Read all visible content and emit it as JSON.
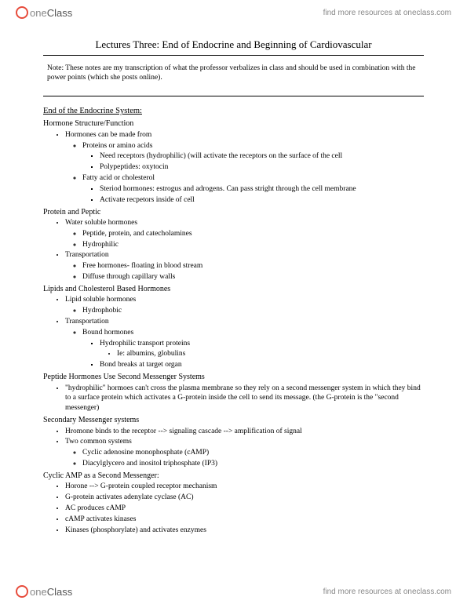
{
  "header": {
    "logo_one": "one",
    "logo_class": "Class",
    "link": "find more resources at oneclass.com"
  },
  "title": "Lectures Three: End of Endocrine and Beginning of Cardiovascular",
  "note": "Note: These notes are my transcription of what the professor verbalizes in class and should be used in combination with the power points (which she posts online).",
  "section_heading": "End of the Endocrine System:",
  "topics": {
    "t1": "Hormone Structure/Function",
    "t1_b1": "Hormones can be made from",
    "t1_b1_s1": "Proteins or amino acids",
    "t1_b1_s1_a": "Need receptors (hydrophilic) (will activate the receptors on the surface of the cell",
    "t1_b1_s1_b": "Polypeptides: oxytocin",
    "t1_b1_s2": "Fatty acid or cholesterol",
    "t1_b1_s2_a": "Steriod hormones: estrogus and adrogens. Can pass stright through the cell membrane",
    "t1_b1_s2_b": "Activate recpetors inside of cell",
    "t2": "Protein and Peptic",
    "t2_b1": "Water soluble hormones",
    "t2_b1_s1": "Peptide, protein, and catecholamines",
    "t2_b1_s2": "Hydrophilic",
    "t2_b2": "Transportation",
    "t2_b2_s1": "Free hormones- floating in blood stream",
    "t2_b2_s2": "Diffuse through capillary walls",
    "t3": "Lipids and Cholesterol Based Hormones",
    "t3_b1": "Lipid soluble hormones",
    "t3_b1_s1": "Hydrophobic",
    "t3_b2": "Transportation",
    "t3_b2_s1": "Bound hormones",
    "t3_b2_s1_a": "Hydrophilic transport proteins",
    "t3_b2_s1_a_i": "Ie: albumins, globulins",
    "t3_b2_s1_b": "Bond breaks at target organ",
    "t4": "Peptide Hormones Use Second Messenger Systems",
    "t4_b1": "\"hydrophilic\" hormoes can't cross the plasma membrane so they rely on a second messenger system in which they bind to a surface protein which activates a G-protein inside the cell to send its message. (the G-protein is the \"second messenger)",
    "t5": "Secondary Messenger systems",
    "t5_b1": "Hromone binds to the receptor --> signaling cascade --> amplification of signal",
    "t5_b2": "Two common systems",
    "t5_b2_s1": "Cyclic adenosine monophosphate (cAMP)",
    "t5_b2_s2": "Diacylglycero and inositol triphosphate (IP3)",
    "t6": "Cyclic AMP as a Second Messenger:",
    "t6_b1": "Horone --> G-protein coupled receptor mechanism",
    "t6_b2": "G-protein activates adenylate cyclase (AC)",
    "t6_b3": "AC produces cAMP",
    "t6_b4": "cAMP activates kinases",
    "t6_b5": "Kinases (phosphorylate) and activates enzymes"
  }
}
